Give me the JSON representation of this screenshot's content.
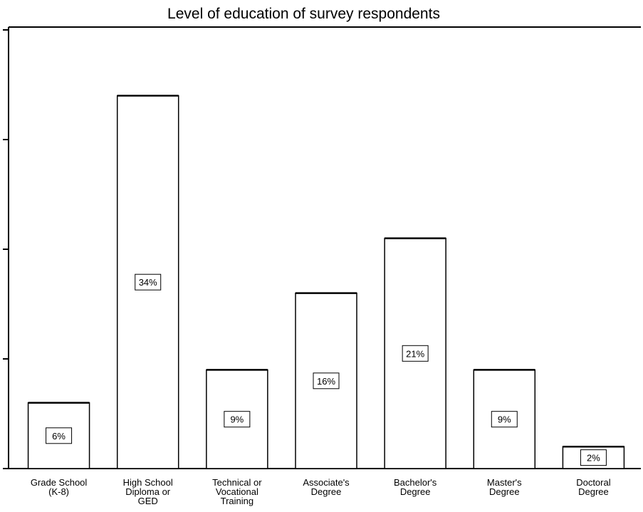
{
  "chart_data": {
    "type": "bar",
    "title": "Level of education of survey respondents",
    "categories": [
      [
        "Grade School",
        "(K-8)"
      ],
      [
        "High School",
        "Diploma or",
        "GED"
      ],
      [
        "Technical or",
        "Vocational",
        "Training"
      ],
      [
        "Associate's",
        "Degree"
      ],
      [
        "Bachelor's",
        "Degree"
      ],
      [
        "Master's",
        "Degree"
      ],
      [
        "Doctoral",
        "Degree"
      ]
    ],
    "values": [
      6,
      34,
      9,
      16,
      21,
      9,
      2
    ],
    "value_labels": [
      "6%",
      "34%",
      "9%",
      "16%",
      "21%",
      "9%",
      "2%"
    ],
    "ylim": [
      0,
      40
    ],
    "yticks": [
      0,
      10,
      20,
      30,
      40
    ],
    "ylabel": "",
    "xlabel": "",
    "bar_color": "#ffffff",
    "stroke_color": "#000000",
    "grid": false,
    "legend": false
  }
}
